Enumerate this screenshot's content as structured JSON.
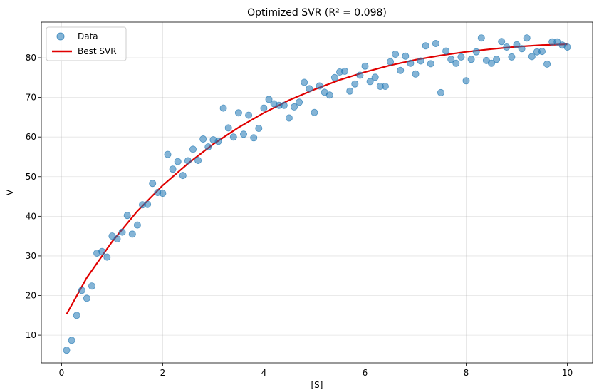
{
  "chart_data": {
    "type": "scatter",
    "title": "Optimized SVR (R² = 0.098)",
    "xlabel": "[S]",
    "ylabel": "V",
    "xlim": [
      -0.4,
      10.5
    ],
    "ylim": [
      3,
      89
    ],
    "xticks": [
      0,
      2,
      4,
      6,
      8,
      10
    ],
    "yticks": [
      10,
      20,
      30,
      40,
      50,
      60,
      70,
      80
    ],
    "grid": true,
    "legend_position": "top-left",
    "colors": {
      "data": "#1f77b4",
      "fit": "#e00000"
    },
    "series": [
      {
        "name": "Data",
        "kind": "scatter",
        "x": [
          0.1,
          0.2,
          0.3,
          0.4,
          0.5,
          0.6,
          0.7,
          0.8,
          0.9,
          1.0,
          1.1,
          1.2,
          1.3,
          1.4,
          1.5,
          1.6,
          1.7,
          1.8,
          1.9,
          2.0,
          2.1,
          2.2,
          2.3,
          2.4,
          2.5,
          2.6,
          2.7,
          2.8,
          2.9,
          3.0,
          3.1,
          3.2,
          3.3,
          3.4,
          3.5,
          3.6,
          3.7,
          3.8,
          3.9,
          4.0,
          4.1,
          4.2,
          4.3,
          4.4,
          4.5,
          4.6,
          4.7,
          4.8,
          4.9,
          5.0,
          5.1,
          5.2,
          5.3,
          5.4,
          5.5,
          5.6,
          5.7,
          5.8,
          5.9,
          6.0,
          6.1,
          6.2,
          6.3,
          6.4,
          6.5,
          6.6,
          6.7,
          6.8,
          6.9,
          7.0,
          7.1,
          7.2,
          7.3,
          7.4,
          7.5,
          7.6,
          7.7,
          7.8,
          7.9,
          8.0,
          8.1,
          8.2,
          8.3,
          8.4,
          8.5,
          8.6,
          8.7,
          8.8,
          8.9,
          9.0,
          9.1,
          9.2,
          9.3,
          9.4,
          9.5,
          9.6,
          9.7,
          9.8,
          9.9,
          10.0
        ],
        "y": [
          6.2,
          8.7,
          15.0,
          21.3,
          19.3,
          22.4,
          30.7,
          31.1,
          29.7,
          35.0,
          34.3,
          36.0,
          40.2,
          35.5,
          37.8,
          42.9,
          43.0,
          48.3,
          46.0,
          45.8,
          55.6,
          51.9,
          53.8,
          50.3,
          54.0,
          56.9,
          54.1,
          59.5,
          57.5,
          59.3,
          58.9,
          67.3,
          62.3,
          60.0,
          66.1,
          60.7,
          65.5,
          59.8,
          62.2,
          67.3,
          69.5,
          68.4,
          68.0,
          68.0,
          64.8,
          67.6,
          68.8,
          73.8,
          72.2,
          66.2,
          72.9,
          71.3,
          70.6,
          75.0,
          76.4,
          76.6,
          71.6,
          73.4,
          75.6,
          77.9,
          74.0,
          75.1,
          72.8,
          72.8,
          79.0,
          80.9,
          76.8,
          80.4,
          78.6,
          75.9,
          79.2,
          83.0,
          78.5,
          83.6,
          71.2,
          81.7,
          79.6,
          78.6,
          80.2,
          74.2,
          79.6,
          81.5,
          85.0,
          79.3,
          78.6,
          79.6,
          84.1,
          82.7,
          80.2,
          83.3,
          82.3,
          85.0,
          80.3,
          81.5,
          81.6,
          78.4,
          84.0,
          84.0,
          83.2,
          82.7
        ]
      },
      {
        "name": "Best SVR",
        "kind": "line",
        "x": [
          0.1,
          0.5,
          1.0,
          1.5,
          2.0,
          2.5,
          3.0,
          3.5,
          4.0,
          4.5,
          5.0,
          5.5,
          6.0,
          6.5,
          7.0,
          7.5,
          8.0,
          8.5,
          9.0,
          9.5,
          10.0
        ],
        "y": [
          15.3,
          24.5,
          33.6,
          41.3,
          47.8,
          53.3,
          58.2,
          62.4,
          66.1,
          69.3,
          72.0,
          74.4,
          76.4,
          78.1,
          79.5,
          80.6,
          81.5,
          82.2,
          82.8,
          83.2,
          83.4
        ]
      }
    ]
  }
}
